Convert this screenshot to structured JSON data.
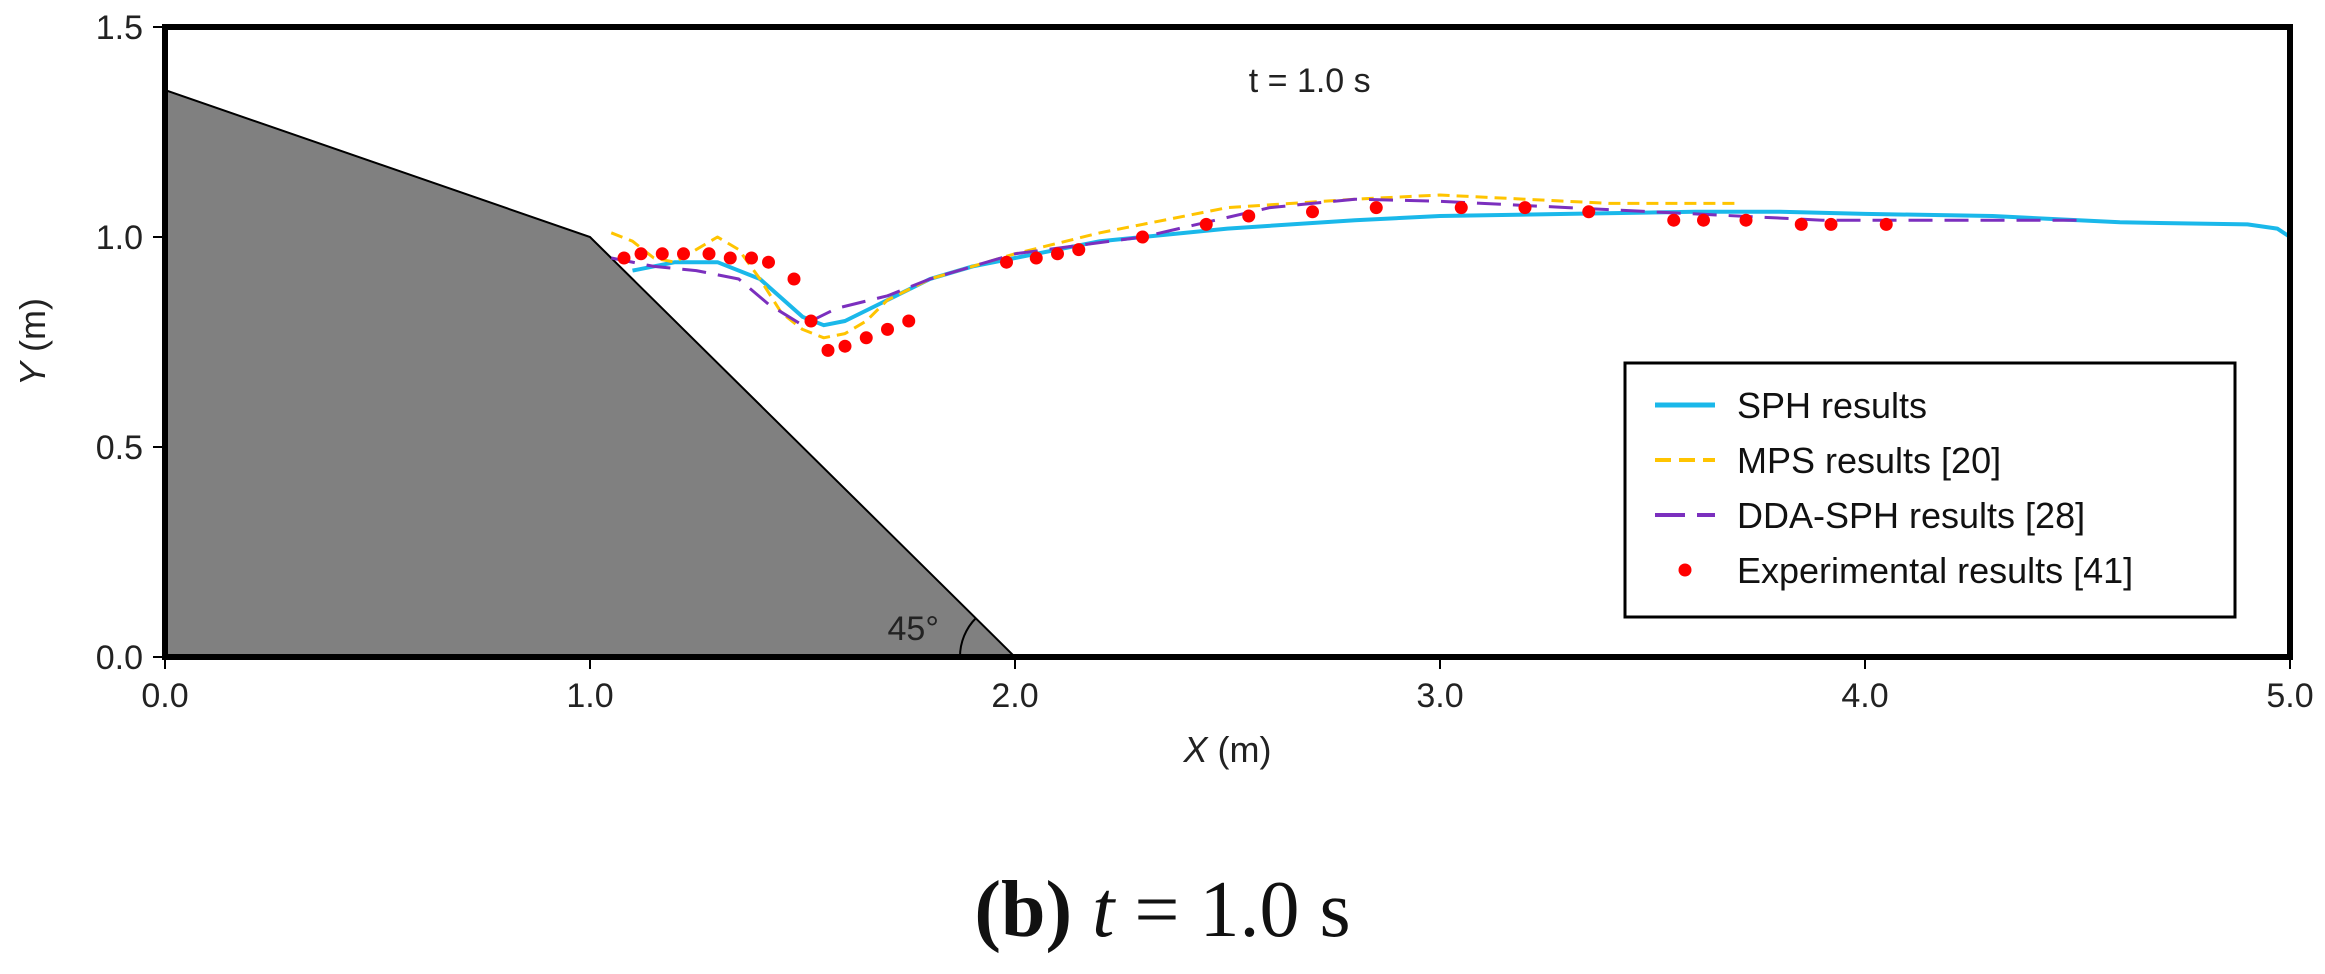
{
  "chart_data": {
    "type": "line",
    "annotation": "t = 1.0 s",
    "xlabel_var": "X",
    "xlabel_unit": " (m)",
    "ylabel_var": "Y",
    "ylabel_unit": " (m)",
    "xlim": [
      0,
      5
    ],
    "ylim": [
      0,
      1.5
    ],
    "x_ticks": [
      0,
      1,
      2,
      3,
      4,
      5
    ],
    "x_tick_labels": [
      "0.0",
      "1.0",
      "2.0",
      "3.0",
      "4.0",
      "5.0"
    ],
    "y_ticks": [
      0,
      0.5,
      1,
      1.5
    ],
    "y_tick_labels": [
      "0.0",
      "0.5",
      "1.0",
      "1.5"
    ],
    "grid": false,
    "legend_position": "bottom-right",
    "angle_label": "45°",
    "obstacle": {
      "name": "Slope",
      "color": "#808080",
      "polygon": [
        [
          0,
          0
        ],
        [
          0,
          1.35
        ],
        [
          1.0,
          1.0
        ],
        [
          2.0,
          0
        ],
        [
          0,
          0
        ]
      ]
    },
    "series": [
      {
        "name": "SPH results",
        "style": "solid",
        "color": "#1ab8ea",
        "x": [
          1.1,
          1.2,
          1.3,
          1.4,
          1.5,
          1.55,
          1.6,
          1.7,
          1.8,
          1.9,
          2.0,
          2.2,
          2.5,
          2.8,
          3.0,
          3.3,
          3.6,
          3.8,
          4.0,
          4.3,
          4.6,
          4.9,
          4.97,
          5.0
        ],
        "y": [
          0.92,
          0.94,
          0.94,
          0.9,
          0.81,
          0.79,
          0.8,
          0.85,
          0.9,
          0.93,
          0.95,
          0.99,
          1.02,
          1.04,
          1.05,
          1.055,
          1.06,
          1.06,
          1.055,
          1.05,
          1.035,
          1.03,
          1.02,
          1.0
        ]
      },
      {
        "name": "MPS results [20]",
        "style": "dashed",
        "color": "#ffc400",
        "x": [
          1.05,
          1.1,
          1.15,
          1.2,
          1.25,
          1.3,
          1.35,
          1.4,
          1.45,
          1.5,
          1.55,
          1.6,
          1.65,
          1.7,
          1.8,
          1.9,
          2.0,
          2.2,
          2.5,
          2.8,
          3.0,
          3.2,
          3.4,
          3.6,
          3.7
        ],
        "y": [
          1.01,
          0.99,
          0.95,
          0.94,
          0.97,
          1.0,
          0.97,
          0.9,
          0.82,
          0.78,
          0.76,
          0.77,
          0.8,
          0.85,
          0.9,
          0.93,
          0.96,
          1.01,
          1.07,
          1.09,
          1.1,
          1.09,
          1.08,
          1.08,
          1.08
        ]
      },
      {
        "name": "DDA-SPH results [28]",
        "style": "long-dash",
        "color": "#7b2fbe",
        "x": [
          1.05,
          1.15,
          1.25,
          1.35,
          1.42,
          1.5,
          1.58,
          1.7,
          1.8,
          2.0,
          2.3,
          2.6,
          2.8,
          3.0,
          3.3,
          3.6,
          3.9,
          4.2,
          4.5
        ],
        "y": [
          0.95,
          0.93,
          0.92,
          0.9,
          0.84,
          0.79,
          0.83,
          0.86,
          0.9,
          0.96,
          1.0,
          1.07,
          1.09,
          1.085,
          1.07,
          1.055,
          1.04,
          1.04,
          1.04
        ]
      },
      {
        "name": "Experimental results [41]",
        "style": "markers",
        "color": "#ff0000",
        "x": [
          1.08,
          1.12,
          1.17,
          1.22,
          1.28,
          1.33,
          1.38,
          1.42,
          1.48,
          1.52,
          1.56,
          1.6,
          1.65,
          1.7,
          1.75,
          1.98,
          2.05,
          2.1,
          2.15,
          2.3,
          2.45,
          2.55,
          2.7,
          2.85,
          3.05,
          3.2,
          3.35,
          3.55,
          3.62,
          3.72,
          3.85,
          3.92,
          4.05
        ],
        "y": [
          0.95,
          0.96,
          0.96,
          0.96,
          0.96,
          0.95,
          0.95,
          0.94,
          0.9,
          0.8,
          0.73,
          0.74,
          0.76,
          0.78,
          0.8,
          0.94,
          0.95,
          0.96,
          0.97,
          1.0,
          1.03,
          1.05,
          1.06,
          1.07,
          1.07,
          1.07,
          1.06,
          1.04,
          1.04,
          1.04,
          1.03,
          1.03,
          1.03
        ]
      }
    ]
  },
  "caption": {
    "label": "(b)",
    "variable": "t",
    "equals": " = 1.0 s"
  }
}
